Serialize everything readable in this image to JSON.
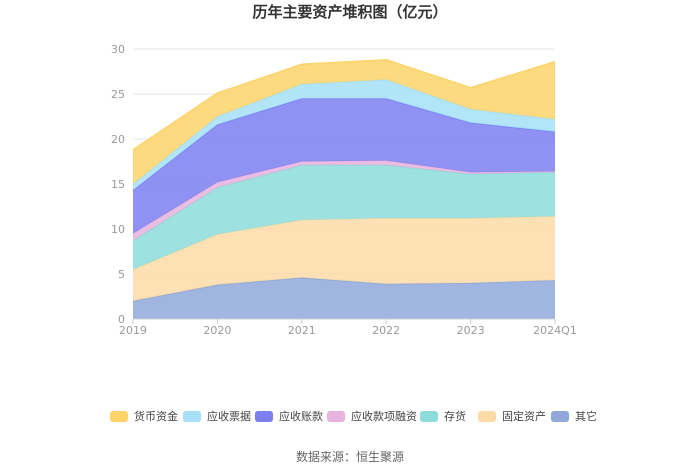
{
  "chart_data": {
    "type": "area",
    "stacked": true,
    "title": "历年主要资产堆积图（亿元）",
    "x": [
      "2019",
      "2020",
      "2021",
      "2022",
      "2023",
      "2024Q1"
    ],
    "ylim": [
      0,
      30
    ],
    "yticks": [
      0,
      5,
      10,
      15,
      20,
      25,
      30
    ],
    "grid": true,
    "legend_position": "bottom",
    "series": [
      {
        "name": "其它",
        "color": "#8fa8d9",
        "values": [
          2.0,
          3.8,
          4.6,
          3.9,
          4.0,
          4.3
        ]
      },
      {
        "name": "固定资产",
        "color": "#fddba6",
        "values": [
          3.5,
          5.6,
          6.4,
          7.3,
          7.2,
          7.1
        ]
      },
      {
        "name": "存货",
        "color": "#8ddcdc",
        "values": [
          3.2,
          5.2,
          6.1,
          5.9,
          4.9,
          4.9
        ]
      },
      {
        "name": "应收款项融资",
        "color": "#e6b3de",
        "values": [
          0.8,
          0.6,
          0.4,
          0.5,
          0.2,
          0.1
        ]
      },
      {
        "name": "应收账款",
        "color": "#7b7ff0",
        "values": [
          4.8,
          6.4,
          7.0,
          6.9,
          5.5,
          4.4
        ]
      },
      {
        "name": "应收票据",
        "color": "#a5e0f6",
        "values": [
          0.7,
          0.9,
          1.6,
          2.1,
          1.5,
          1.4
        ]
      },
      {
        "name": "货币资金",
        "color": "#fdd36a",
        "values": [
          3.8,
          2.6,
          2.2,
          2.2,
          2.4,
          6.4
        ]
      }
    ],
    "legend_order": [
      "货币资金",
      "应收票据",
      "应收账款",
      "应收款项融资",
      "存货",
      "固定资产",
      "其它"
    ]
  },
  "source": "数据来源：恒生聚源"
}
